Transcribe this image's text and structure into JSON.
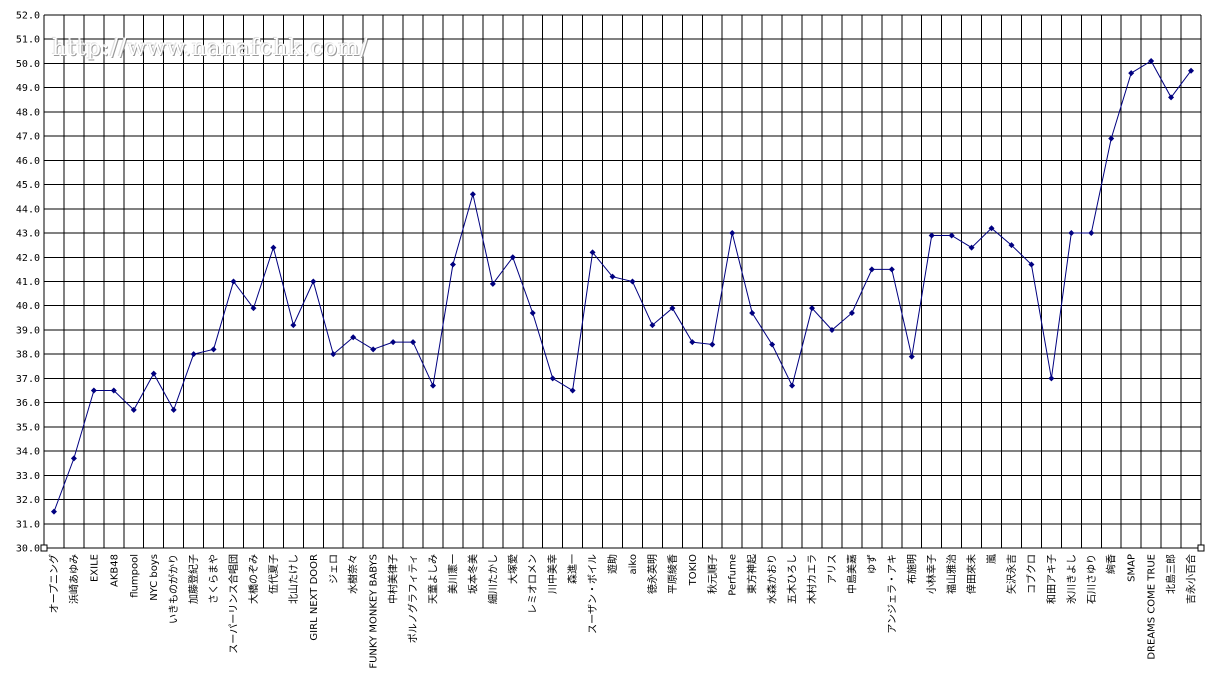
{
  "watermark": "http://www.nanafchk.com/",
  "chart_data": {
    "type": "line",
    "title": "",
    "xlabel": "",
    "ylabel": "",
    "ylim": [
      30.0,
      52.0
    ],
    "ytick_step": 1.0,
    "grid": true,
    "legend": "none",
    "colors": {
      "line": "#000080",
      "marker": "#000080",
      "grid": "#000000"
    },
    "categories": [
      "オープニング",
      "浜崎あゆみ",
      "EXILE",
      "AKB48",
      "flumpool",
      "NYC boys",
      "いきものがかり",
      "加藤登紀子",
      "さくらまや",
      "スーパーリンス合唱団",
      "大橋のぞみ",
      "伍代夏子",
      "北山たけし",
      "GIRL NEXT DOOR",
      "ジェロ",
      "水樹奈々",
      "FUNKY MONKEY BABYS",
      "中村美律子",
      "ポルノグラフィティ",
      "天童よしみ",
      "美川憲一",
      "坂本冬美",
      "細川たかし",
      "大塚愛",
      "レミオロメン",
      "川中美幸",
      "森進一",
      "スーザン・ボイル",
      "遊助",
      "aiko",
      "徳永英明",
      "平原綾香",
      "TOKIO",
      "秋元順子",
      "Perfume",
      "東方神起",
      "水森かおり",
      "五木ひろし",
      "木村カエラ",
      "アリス",
      "中島美嘉",
      "ゆず",
      "アンジェラ・アキ",
      "布施明",
      "小林幸子",
      "福山雅治",
      "倖田來未",
      "嵐",
      "矢沢永吉",
      "コブクロ",
      "和田アキ子",
      "氷川きよし",
      "石川さゆり",
      "絢香",
      "SMAP",
      "DREAMS COME TRUE",
      "北島三郎",
      "吉永小百合"
    ],
    "series": [
      {
        "values": [
          31.5,
          33.7,
          36.5,
          36.5,
          35.7,
          37.2,
          35.7,
          38.0,
          38.2,
          41.0,
          39.9,
          42.4,
          39.2,
          41.0,
          38.0,
          38.7,
          38.2,
          38.5,
          38.5,
          36.7,
          41.7,
          44.6,
          40.9,
          42.0,
          39.7,
          37.0,
          36.5,
          42.2,
          41.2,
          41.0,
          39.2,
          39.9,
          38.5,
          38.4,
          43.0,
          39.7,
          38.4,
          36.7,
          39.9,
          39.0,
          39.7,
          41.5,
          41.5,
          37.9,
          42.9,
          42.9,
          42.4,
          43.2,
          42.5,
          41.7,
          37.0,
          43.0,
          43.0,
          46.9,
          49.6,
          50.1,
          48.6,
          49.7
        ]
      }
    ]
  }
}
